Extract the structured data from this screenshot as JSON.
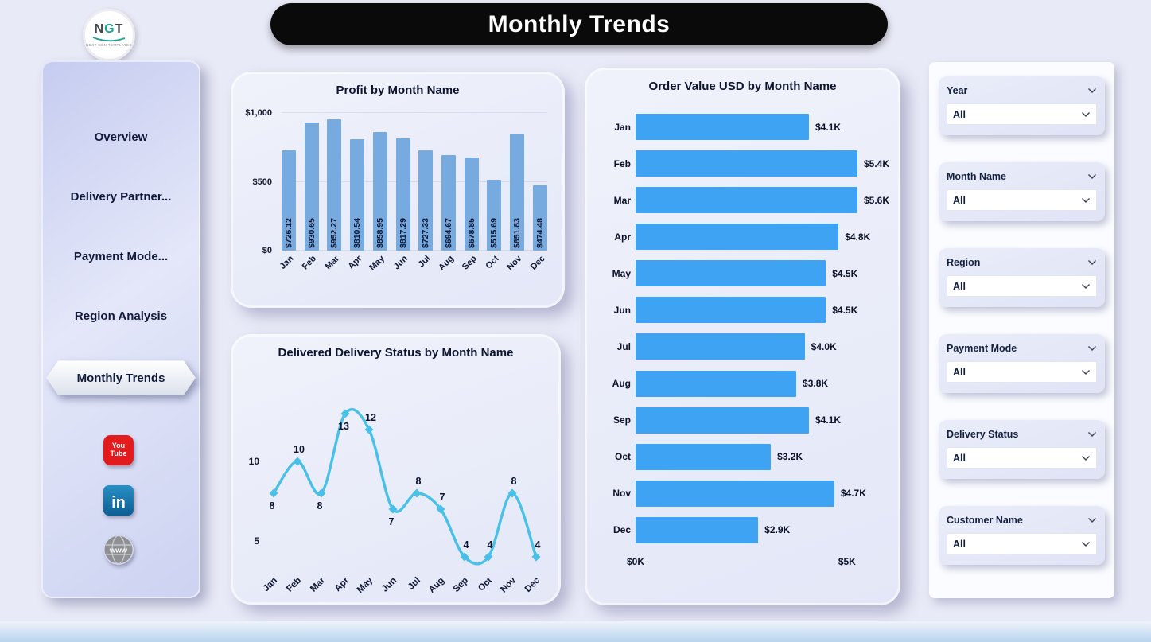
{
  "header": {
    "title": "Monthly Trends"
  },
  "logo": {
    "letters": [
      "N",
      "G",
      "T"
    ],
    "caption": "NEXT GEN TEMPLATES"
  },
  "sidebar": {
    "items": [
      {
        "label": "Overview",
        "active": false
      },
      {
        "label": "Delivery Partner...",
        "active": false
      },
      {
        "label": "Payment Mode...",
        "active": false
      },
      {
        "label": "Region Analysis",
        "active": false
      },
      {
        "label": "Monthly Trends",
        "active": true
      }
    ],
    "social": [
      {
        "name": "youtube",
        "lines": [
          "You",
          "Tube"
        ]
      },
      {
        "name": "linkedin",
        "text": "in"
      },
      {
        "name": "website",
        "text": "www"
      }
    ]
  },
  "filters": {
    "groups": [
      {
        "label": "Year",
        "value": "All"
      },
      {
        "label": "Month Name",
        "value": "All"
      },
      {
        "label": "Region",
        "value": "All"
      },
      {
        "label": "Payment Mode",
        "value": "All"
      },
      {
        "label": "Delivery Status",
        "value": "All"
      },
      {
        "label": "Customer Name",
        "value": "All"
      }
    ]
  },
  "chart_data": [
    {
      "type": "bar",
      "title": "Profit by Month Name",
      "categories": [
        "Jan",
        "Feb",
        "Mar",
        "Apr",
        "May",
        "Jun",
        "Jul",
        "Aug",
        "Sep",
        "Oct",
        "Nov",
        "Dec"
      ],
      "values": [
        726.12,
        930.65,
        952.27,
        810.54,
        858.95,
        817.29,
        727.33,
        694.67,
        678.85,
        515.69,
        851.83,
        474.48
      ],
      "bar_labels": [
        "$726.12",
        "$930.65",
        "$952.27",
        "$810.54",
        "$858.95",
        "$817.29",
        "$727.33",
        "$694.67",
        "$678.85",
        "$515.69",
        "$851.83",
        "$474.48"
      ],
      "ylim": [
        0,
        1000
      ],
      "yticks": [
        {
          "label": "$0",
          "value": 0
        },
        {
          "label": "$500",
          "value": 500
        },
        {
          "label": "$1,000",
          "value": 1000
        }
      ],
      "bar_color": "#77abdf"
    },
    {
      "type": "line",
      "title": "Delivered Delivery Status by Month Name",
      "categories": [
        "Jan",
        "Feb",
        "Mar",
        "Apr",
        "May",
        "Jun",
        "Jul",
        "Aug",
        "Sep",
        "Oct",
        "Nov",
        "Dec"
      ],
      "values": [
        8,
        10,
        8,
        13,
        12,
        7,
        8,
        7,
        4,
        4,
        8,
        4
      ],
      "ylim": [
        3,
        14.5
      ],
      "yticks": [
        {
          "label": "5",
          "value": 5
        },
        {
          "label": "10",
          "value": 10
        }
      ],
      "line_color": "#49c0e8"
    },
    {
      "type": "bar",
      "orientation": "horizontal",
      "title": "Order Value USD by Month Name",
      "categories": [
        "Jan",
        "Feb",
        "Mar",
        "Apr",
        "May",
        "Jun",
        "Jul",
        "Aug",
        "Sep",
        "Oct",
        "Nov",
        "Dec"
      ],
      "values": [
        4.1,
        5.4,
        5.6,
        4.8,
        4.5,
        4.5,
        4.0,
        3.8,
        4.1,
        3.2,
        4.7,
        2.9
      ],
      "bar_labels": [
        "$4.1K",
        "$5.4K",
        "$5.6K",
        "$4.8K",
        "$4.5K",
        "$4.5K",
        "$4.0K",
        "$3.8K",
        "$4.1K",
        "$3.2K",
        "$4.7K",
        "$2.9K"
      ],
      "xlim": [
        0,
        6
      ],
      "xticks": [
        {
          "label": "$0K",
          "value": 0
        },
        {
          "label": "$5K",
          "value": 5
        }
      ],
      "bar_color": "#3ea3f2"
    }
  ]
}
